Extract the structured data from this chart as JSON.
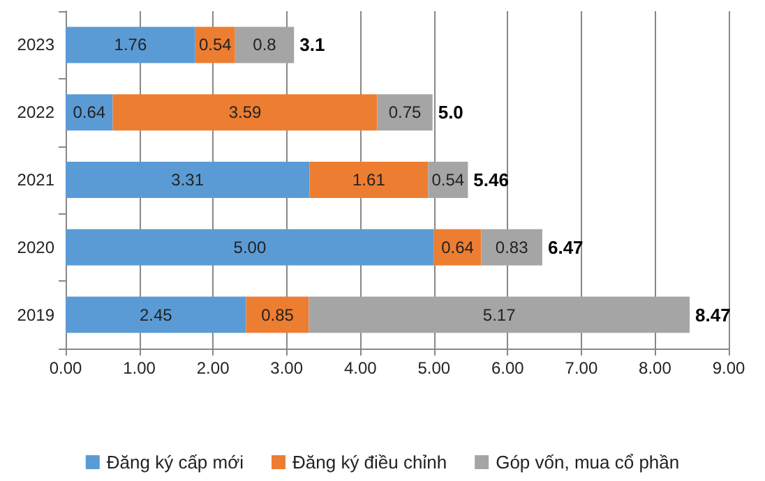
{
  "chart_data": {
    "type": "bar",
    "orientation": "horizontal",
    "stacked": true,
    "categories": [
      "2023",
      "2022",
      "2021",
      "2020",
      "2019"
    ],
    "series": [
      {
        "name": "Đăng ký cấp mới",
        "color": "#5b9bd5",
        "values": [
          1.76,
          0.64,
          3.31,
          5.0,
          2.45
        ],
        "value_labels": [
          "1.76",
          "0.64",
          "3.31",
          "5.00",
          "2.45"
        ]
      },
      {
        "name": "Đăng ký điều chỉnh",
        "color": "#ed7d31",
        "values": [
          0.54,
          3.59,
          1.61,
          0.64,
          0.85
        ],
        "value_labels": [
          "0.54",
          "3.59",
          "1.61",
          "0.64",
          "0.85"
        ]
      },
      {
        "name": "Góp vốn, mua cổ phần",
        "color": "#a5a5a5",
        "values": [
          0.8,
          0.75,
          0.54,
          0.83,
          5.17
        ],
        "value_labels": [
          "0.8",
          "0.75",
          "0.54",
          "0.83",
          "5.17"
        ]
      }
    ],
    "totals": [
      "3.1",
      "5.0",
      "5.46",
      "6.47",
      "8.47"
    ],
    "xlim": [
      0,
      9
    ],
    "xticks": [
      {
        "value": 0,
        "label": "0.00"
      },
      {
        "value": 1,
        "label": "1.00"
      },
      {
        "value": 2,
        "label": "2.00"
      },
      {
        "value": 3,
        "label": "3.00"
      },
      {
        "value": 4,
        "label": "4.00"
      },
      {
        "value": 5,
        "label": "5.00"
      },
      {
        "value": 6,
        "label": "6.00"
      },
      {
        "value": 7,
        "label": "7.00"
      },
      {
        "value": 8,
        "label": "8.00"
      },
      {
        "value": 9,
        "label": "9.00"
      }
    ],
    "grid": "x",
    "legend": "bottom"
  }
}
